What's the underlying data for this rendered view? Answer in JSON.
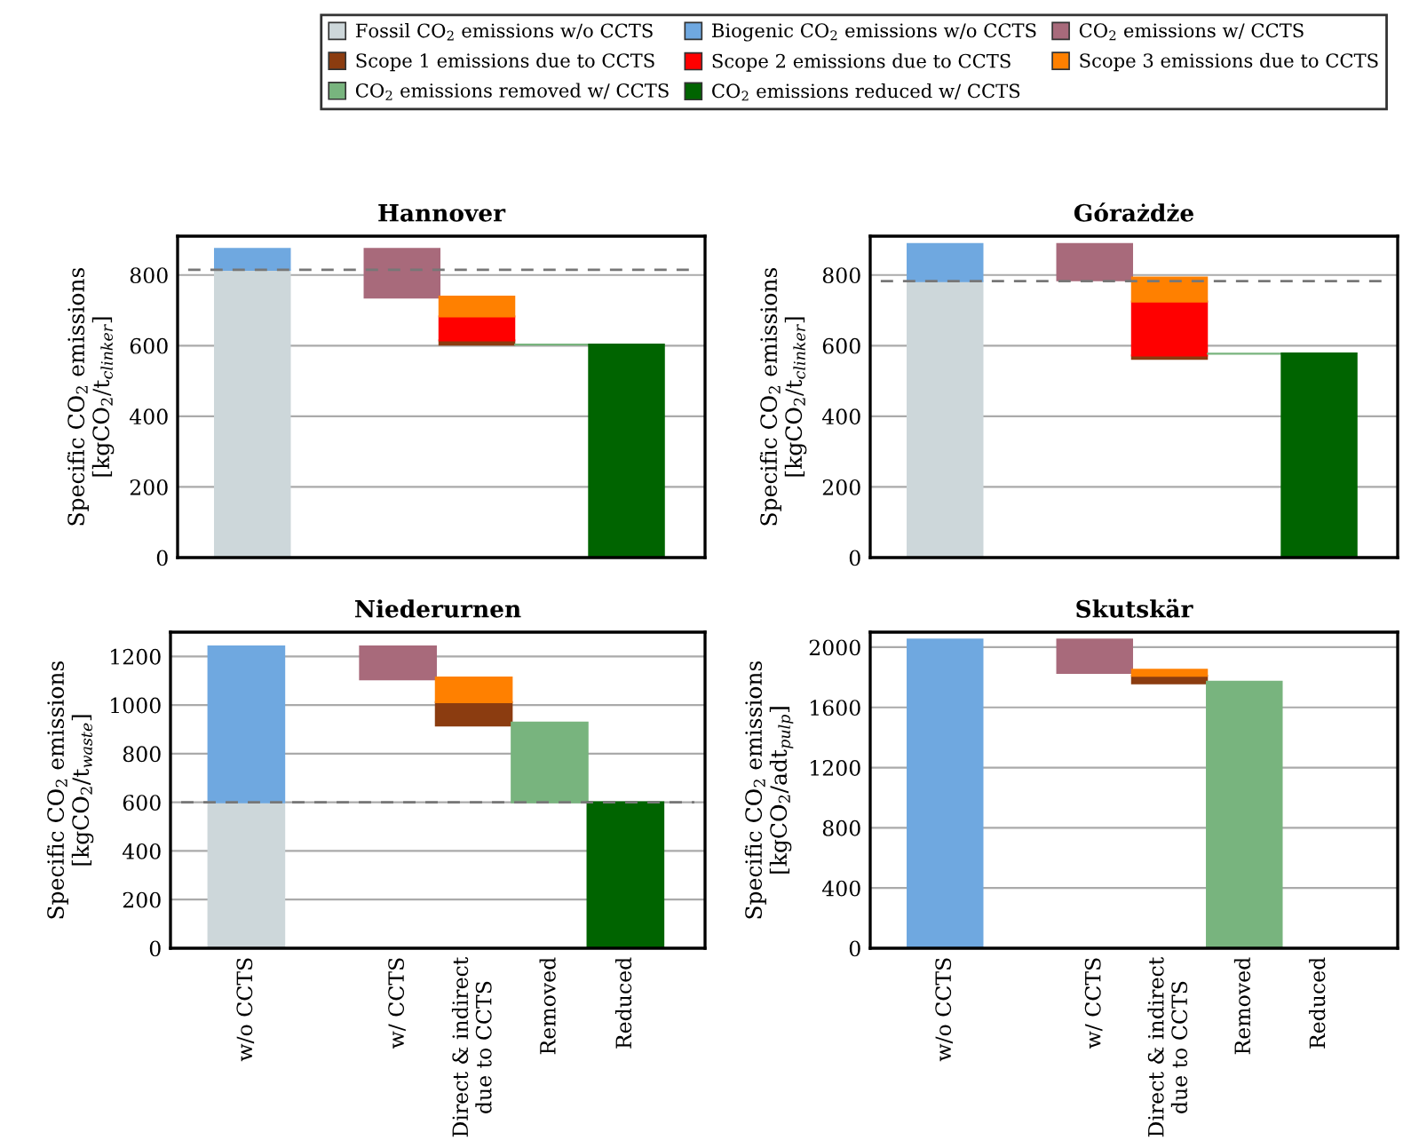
{
  "chart_data": [
    {
      "type": "bar",
      "title": "Hannover",
      "ylabel": "Specific CO$_{2}$ emissions\n[kgCO$_{2}$/t$_{clinker}$]",
      "categories": [
        "w/o CCTS",
        null,
        "w/ CCTS",
        "Direct & indirect\ndue to CCTS",
        "Removed",
        "Reduced"
      ],
      "ylim": [
        0,
        910
      ],
      "yticks": [
        0,
        200,
        400,
        600,
        800
      ],
      "grid": "y",
      "tick_labels": "y",
      "legend": "top",
      "ref_lines": [
        {
          "axis": "y",
          "value": 815,
          "line_style": "dashed",
          "color": "#777777"
        }
      ],
      "series": [
        {
          "name": "Fossil CO$_{2}$ emissions w/o CCTS",
          "color": "#cdd7da",
          "values": [
            815,
            null,
            null,
            null,
            null,
            null
          ],
          "base": [
            0,
            null,
            null,
            null,
            null,
            null
          ]
        },
        {
          "name": "Biogenic CO$_{2}$ emissions w/o CCTS",
          "color": "#6fa8e0",
          "values": [
            59,
            null,
            null,
            null,
            null,
            null
          ],
          "base": [
            815,
            null,
            null,
            null,
            null,
            null
          ]
        },
        {
          "name": "CO$_{2}$ emissions w/ CCTS",
          "color": "#a86a7b",
          "values": [
            null,
            null,
            138,
            null,
            null,
            null
          ],
          "base": [
            null,
            null,
            736,
            null,
            null,
            null
          ]
        },
        {
          "name": "Scope 1 emissions due to CCTS",
          "color": "#8b3c10",
          "values": [
            null,
            null,
            null,
            12,
            null,
            null
          ],
          "base": [
            null,
            null,
            null,
            603,
            null,
            null
          ]
        },
        {
          "name": "Scope 2 emissions due to CCTS",
          "color": "#ff0000",
          "values": [
            null,
            null,
            null,
            68,
            null,
            null
          ],
          "base": [
            null,
            null,
            null,
            615,
            null,
            null
          ]
        },
        {
          "name": "Scope 3 emissions due to CCTS",
          "color": "#ff8000",
          "values": [
            null,
            null,
            null,
            56,
            null,
            null
          ],
          "base": [
            null,
            null,
            null,
            683,
            null,
            null
          ]
        },
        {
          "name": "CO$_{2}$ emissions removed w/ CCTS",
          "color": "#78b47e",
          "values": [
            null,
            null,
            null,
            null,
            0,
            null
          ],
          "base": [
            null,
            null,
            null,
            null,
            603,
            null
          ]
        },
        {
          "name": "CO$_{2}$ emissions reduced w/ CCTS",
          "color": "#006400",
          "values": [
            null,
            null,
            null,
            null,
            null,
            603
          ],
          "base": [
            null,
            null,
            null,
            null,
            null,
            0
          ]
        }
      ]
    },
    {
      "type": "bar",
      "title": "Górażdże",
      "ylabel": "Specific CO$_{2}$ emissions\n[kgCO$_{2}$/t$_{clinker}$]",
      "categories": [
        "w/o CCTS",
        null,
        "w/ CCTS",
        "Direct & indirect\ndue to CCTS",
        "Removed",
        "Reduced"
      ],
      "ylim": [
        0,
        910
      ],
      "yticks": [
        0,
        200,
        400,
        600,
        800
      ],
      "grid": "y",
      "tick_labels": "y",
      "ref_lines": [
        {
          "axis": "y",
          "value": 783,
          "line_style": "dashed",
          "color": "#777777"
        }
      ],
      "series": [
        {
          "name": "Fossil CO$_{2}$ emissions w/o CCTS",
          "color": "#cdd7da",
          "values": [
            783,
            null,
            null,
            null,
            null,
            null
          ],
          "base": [
            0,
            null,
            null,
            null,
            null,
            null
          ]
        },
        {
          "name": "Biogenic CO$_{2}$ emissions w/o CCTS",
          "color": "#6fa8e0",
          "values": [
            105,
            null,
            null,
            null,
            null,
            null
          ],
          "base": [
            783,
            null,
            null,
            null,
            null,
            null
          ]
        },
        {
          "name": "CO$_{2}$ emissions w/ CCTS",
          "color": "#a86a7b",
          "values": [
            null,
            null,
            103,
            null,
            null,
            null
          ],
          "base": [
            null,
            null,
            785,
            null,
            null,
            null
          ]
        },
        {
          "name": "Scope 1 emissions due to CCTS",
          "color": "#8b3c10",
          "values": [
            null,
            null,
            null,
            9,
            null,
            null
          ],
          "base": [
            null,
            null,
            null,
            563,
            null,
            null
          ]
        },
        {
          "name": "Scope 2 emissions due to CCTS",
          "color": "#ff0000",
          "values": [
            null,
            null,
            null,
            153,
            null,
            null
          ],
          "base": [
            null,
            null,
            null,
            572,
            null,
            null
          ]
        },
        {
          "name": "Scope 3 emissions due to CCTS",
          "color": "#ff8000",
          "values": [
            null,
            null,
            null,
            68,
            null,
            null
          ],
          "base": [
            null,
            null,
            null,
            725,
            null,
            null
          ]
        },
        {
          "name": "CO$_{2}$ emissions removed w/ CCTS",
          "color": "#78b47e",
          "values": [
            null,
            null,
            null,
            null,
            0,
            null
          ],
          "base": [
            null,
            null,
            null,
            null,
            577,
            null
          ]
        },
        {
          "name": "CO$_{2}$ emissions reduced w/ CCTS",
          "color": "#006400",
          "values": [
            null,
            null,
            null,
            null,
            null,
            578
          ],
          "base": [
            null,
            null,
            null,
            null,
            null,
            0
          ]
        }
      ]
    },
    {
      "type": "bar",
      "title": "Niederurnen",
      "ylabel": "Specific CO$_{2}$ emissions\n[kgCO$_{2}$/t$_{waste}$]",
      "categories": [
        "w/o CCTS",
        null,
        "w/ CCTS",
        "Direct & indirect\ndue to CCTS",
        "Removed",
        "Reduced"
      ],
      "ylim": [
        0,
        1300
      ],
      "yticks": [
        0,
        200,
        400,
        600,
        800,
        1000,
        1200
      ],
      "grid": "y",
      "ref_lines": [
        {
          "axis": "y",
          "value": 600,
          "line_style": "dashed",
          "color": "#777777"
        }
      ],
      "series": [
        {
          "name": "Fossil CO$_{2}$ emissions w/o CCTS",
          "color": "#cdd7da",
          "values": [
            600,
            null,
            null,
            null,
            null,
            null
          ],
          "base": [
            0,
            null,
            null,
            null,
            null,
            null
          ]
        },
        {
          "name": "Biogenic CO$_{2}$ emissions w/o CCTS",
          "color": "#6fa8e0",
          "values": [
            641,
            null,
            null,
            null,
            null,
            null
          ],
          "base": [
            600,
            null,
            null,
            null,
            null,
            null
          ]
        },
        {
          "name": "CO$_{2}$ emissions w/ CCTS",
          "color": "#a86a7b",
          "values": [
            null,
            null,
            135,
            null,
            null,
            null
          ],
          "base": [
            null,
            null,
            1106,
            null,
            null,
            null
          ]
        },
        {
          "name": "Scope 1 emissions due to CCTS",
          "color": "#8b3c10",
          "values": [
            null,
            null,
            null,
            96,
            null,
            null
          ],
          "base": [
            null,
            null,
            null,
            916,
            null,
            null
          ]
        },
        {
          "name": "Scope 3 emissions due to CCTS",
          "color": "#ff8000",
          "values": [
            null,
            null,
            null,
            101,
            null,
            null
          ],
          "base": [
            null,
            null,
            null,
            1012,
            null,
            null
          ]
        },
        {
          "name": "CO$_{2}$ emissions removed w/ CCTS",
          "color": "#78b47e",
          "values": [
            null,
            null,
            null,
            null,
            328,
            null
          ],
          "base": [
            null,
            null,
            null,
            null,
            600,
            null
          ]
        },
        {
          "name": "CO$_{2}$ emissions reduced w/ CCTS",
          "color": "#006400",
          "values": [
            null,
            null,
            null,
            null,
            null,
            600
          ],
          "base": [
            null,
            null,
            null,
            null,
            null,
            0
          ]
        }
      ]
    },
    {
      "type": "bar",
      "title": "Skutskär",
      "ylabel": "Specific CO$_{2}$ emissions\n[kgCO$_{2}$/adt$_{pulp}$]",
      "categories": [
        "w/o CCTS",
        null,
        "w/ CCTS",
        "Direct & indirect\ndue to CCTS",
        "Removed",
        "Reduced"
      ],
      "ylim": [
        0,
        2100
      ],
      "yticks": [
        0,
        400,
        800,
        1200,
        1600,
        2000
      ],
      "grid": "y",
      "series": [
        {
          "name": "Biogenic CO$_{2}$ emissions w/o CCTS",
          "color": "#6fa8e0",
          "values": [
            2050,
            null,
            null,
            null,
            null,
            null
          ],
          "base": [
            0,
            null,
            null,
            null,
            null,
            null
          ]
        },
        {
          "name": "CO$_{2}$ emissions w/ CCTS",
          "color": "#a86a7b",
          "values": [
            null,
            null,
            220,
            null,
            null,
            null
          ],
          "base": [
            null,
            null,
            1830,
            null,
            null,
            null
          ]
        },
        {
          "name": "Scope 1 emissions due to CCTS",
          "color": "#8b3c10",
          "values": [
            null,
            null,
            null,
            50,
            null,
            null
          ],
          "base": [
            null,
            null,
            null,
            1760,
            null,
            null
          ]
        },
        {
          "name": "Scope 3 emissions due to CCTS",
          "color": "#ff8000",
          "values": [
            null,
            null,
            null,
            40,
            null,
            null
          ],
          "base": [
            null,
            null,
            null,
            1810,
            null,
            null
          ]
        },
        {
          "name": "CO$_{2}$ emissions removed w/ CCTS",
          "color": "#78b47e",
          "values": [
            null,
            null,
            null,
            null,
            1770,
            null
          ],
          "base": [
            null,
            null,
            null,
            null,
            0,
            null
          ]
        }
      ]
    }
  ]
}
